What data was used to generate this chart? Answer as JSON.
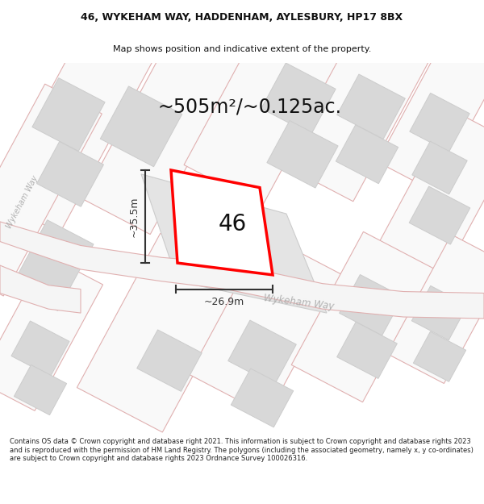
{
  "title_line1": "46, WYKEHAM WAY, HADDENHAM, AYLESBURY, HP17 8BX",
  "title_line2": "Map shows position and indicative extent of the property.",
  "area_text": "~505m²/~0.125ac.",
  "number_label": "46",
  "dim_width": "~26.9m",
  "dim_height": "~35.5m",
  "road_label": "Wykeham Way",
  "road_label_left": "Wykeham Way",
  "footer_text": "Contains OS data © Crown copyright and database right 2021. This information is subject to Crown copyright and database rights 2023 and is reproduced with the permission of HM Land Registry. The polygons (including the associated geometry, namely x, y co-ordinates) are subject to Crown copyright and database rights 2023 Ordnance Survey 100026316.",
  "highlight_color": "#ff0000",
  "text_color": "#111111",
  "dim_color": "#333333",
  "road_outline_color": "#e8b8b8",
  "parcel_fill": "#eeeeee",
  "parcel_edge": "#e0b0b0",
  "building_fill": "#d8d8d8",
  "building_edge": "#cccccc",
  "bg_color": "#ffffff"
}
